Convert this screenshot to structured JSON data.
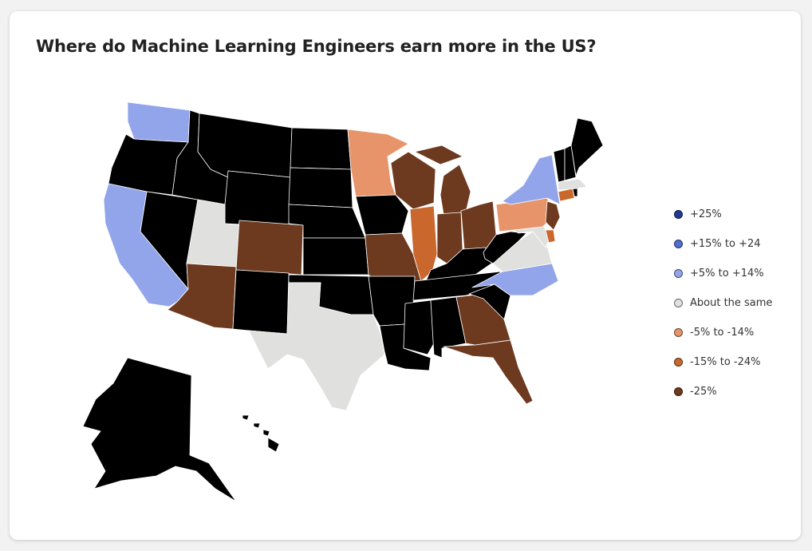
{
  "title": "Where do Machine Learning Engineers earn more in the US?",
  "legend": [
    {
      "label": "+25%",
      "color": "#1f3a93"
    },
    {
      "label": "+15% to +24",
      "color": "#4f6ed1"
    },
    {
      "label": "+5% to +14%",
      "color": "#92a5ea"
    },
    {
      "label": "About the same",
      "color": "#e0e0de"
    },
    {
      "label": "-5% to -14%",
      "color": "#e8946a"
    },
    {
      "label": "-15% to -24%",
      "color": "#c9672c"
    },
    {
      "label": "-25%",
      "color": "#6e3a1f"
    }
  ],
  "region_colors": {
    "plus5_14": "#92a5ea",
    "same": "#e0e0de",
    "minus5_14": "#e8946a",
    "minus15_24": "#c9672c",
    "minus25": "#6e3a1f",
    "no_data": "#000000"
  },
  "regions": [
    {
      "name": "Washington",
      "category": "+5% to +14%"
    },
    {
      "name": "Oregon",
      "category": "no data"
    },
    {
      "name": "California",
      "category": "+5% to +14%"
    },
    {
      "name": "Nevada",
      "category": "no data"
    },
    {
      "name": "Idaho",
      "category": "no data"
    },
    {
      "name": "Montana",
      "category": "no data"
    },
    {
      "name": "Wyoming",
      "category": "no data"
    },
    {
      "name": "Utah",
      "category": "About the same"
    },
    {
      "name": "Arizona",
      "category": "-25%"
    },
    {
      "name": "Colorado",
      "category": "-25%"
    },
    {
      "name": "New Mexico",
      "category": "no data"
    },
    {
      "name": "North Dakota",
      "category": "no data"
    },
    {
      "name": "South Dakota",
      "category": "no data"
    },
    {
      "name": "Nebraska",
      "category": "no data"
    },
    {
      "name": "Kansas",
      "category": "no data"
    },
    {
      "name": "Oklahoma",
      "category": "no data"
    },
    {
      "name": "Texas",
      "category": "About the same"
    },
    {
      "name": "Minnesota",
      "category": "-5% to -14%"
    },
    {
      "name": "Iowa",
      "category": "no data"
    },
    {
      "name": "Missouri",
      "category": "-25%"
    },
    {
      "name": "Arkansas",
      "category": "no data"
    },
    {
      "name": "Louisiana",
      "category": "no data"
    },
    {
      "name": "Wisconsin",
      "category": "-25%"
    },
    {
      "name": "Illinois",
      "category": "-15% to -24%"
    },
    {
      "name": "Michigan",
      "category": "-25%"
    },
    {
      "name": "Indiana",
      "category": "-25%"
    },
    {
      "name": "Ohio",
      "category": "-25%"
    },
    {
      "name": "Kentucky",
      "category": "no data"
    },
    {
      "name": "Tennessee",
      "category": "no data"
    },
    {
      "name": "Mississippi",
      "category": "no data"
    },
    {
      "name": "Alabama",
      "category": "no data"
    },
    {
      "name": "Georgia",
      "category": "-25%"
    },
    {
      "name": "Florida",
      "category": "-25%"
    },
    {
      "name": "South Carolina",
      "category": "no data"
    },
    {
      "name": "North Carolina",
      "category": "+5% to +14%"
    },
    {
      "name": "Virginia",
      "category": "About the same"
    },
    {
      "name": "West Virginia",
      "category": "no data"
    },
    {
      "name": "Maryland",
      "category": "About the same"
    },
    {
      "name": "Delaware",
      "category": "-15% to -24%"
    },
    {
      "name": "Pennsylvania",
      "category": "-5% to -14%"
    },
    {
      "name": "New Jersey",
      "category": "-25%"
    },
    {
      "name": "New York",
      "category": "+5% to +14%"
    },
    {
      "name": "Connecticut",
      "category": "-15% to -24%"
    },
    {
      "name": "Massachusetts",
      "category": "About the same"
    },
    {
      "name": "Rhode Island",
      "category": "no data"
    },
    {
      "name": "Vermont",
      "category": "no data"
    },
    {
      "name": "New Hampshire",
      "category": "no data"
    },
    {
      "name": "Maine",
      "category": "no data"
    },
    {
      "name": "Alaska",
      "category": "no data"
    },
    {
      "name": "Hawaii",
      "category": "no data"
    }
  ]
}
